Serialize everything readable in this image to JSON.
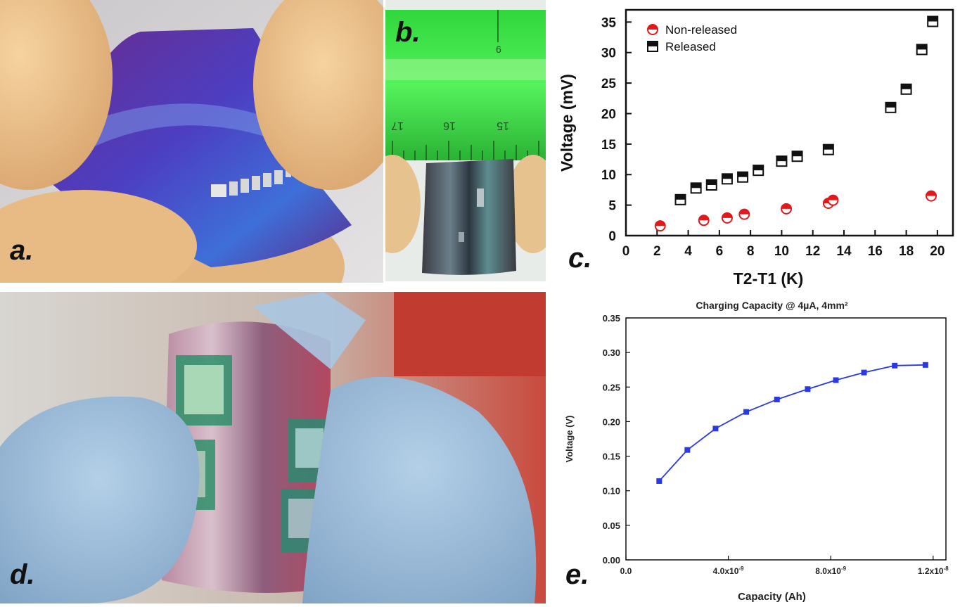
{
  "figure": {
    "labels": {
      "a": "a.",
      "b": "b.",
      "c": "c.",
      "d": "d.",
      "e": "e."
    },
    "ruler": {
      "numbers": [
        "6",
        "17",
        "16",
        "15"
      ]
    }
  },
  "chart_data": [
    {
      "id": "c",
      "type": "scatter",
      "title": "",
      "xlabel": "T2-T1 (K)",
      "ylabel": "Voltage (mV)",
      "xlim": [
        0,
        21
      ],
      "ylim": [
        0,
        37
      ],
      "xticks": [
        "0",
        "2",
        "4",
        "6",
        "8",
        "10",
        "12",
        "14",
        "16",
        "18",
        "20"
      ],
      "yticks": [
        "0",
        "5",
        "10",
        "15",
        "20",
        "25",
        "30",
        "35"
      ],
      "legend_position": "top-left",
      "series": [
        {
          "name": "Non-released",
          "marker": "half-filled circle",
          "color": "#e0191b",
          "points": [
            [
              2.2,
              1.6
            ],
            [
              5.0,
              2.5
            ],
            [
              6.5,
              2.9
            ],
            [
              7.6,
              3.5
            ],
            [
              10.3,
              4.4
            ],
            [
              13.0,
              5.3
            ],
            [
              13.3,
              5.8
            ],
            [
              19.6,
              6.5
            ]
          ]
        },
        {
          "name": "Released",
          "marker": "half-filled square",
          "color": "#111111",
          "points": [
            [
              3.5,
              5.9
            ],
            [
              4.5,
              7.8
            ],
            [
              5.5,
              8.3
            ],
            [
              6.5,
              9.3
            ],
            [
              7.5,
              9.6
            ],
            [
              8.5,
              10.7
            ],
            [
              10.0,
              12.2
            ],
            [
              11.0,
              13.0
            ],
            [
              13.0,
              14.1
            ],
            [
              17.0,
              21.0
            ],
            [
              18.0,
              24.0
            ],
            [
              19.0,
              30.5
            ],
            [
              19.7,
              35.1
            ]
          ]
        }
      ]
    },
    {
      "id": "e",
      "type": "line",
      "title": "Charging Capacity @ 4µA, 4mm²",
      "xlabel": "Capacity (Ah)",
      "ylabel": "Voltage (V)",
      "xlim": [
        0,
        1.25e-08
      ],
      "ylim": [
        0,
        0.35
      ],
      "xticks": [
        {
          "main": "0.0"
        },
        {
          "main": "4.0x10",
          "sup": "-9"
        },
        {
          "main": "8.0x10",
          "sup": "-9"
        },
        {
          "main": "1.2x10",
          "sup": "-8"
        }
      ],
      "yticks": [
        "0.00",
        "0.05",
        "0.10",
        "0.15",
        "0.20",
        "0.25",
        "0.30",
        "0.35"
      ],
      "color": "#2a3ae0",
      "series": [
        {
          "name": "",
          "x": [
            1.3e-09,
            2.4e-09,
            3.5e-09,
            4.7e-09,
            5.9e-09,
            7.1e-09,
            8.2e-09,
            9.3e-09,
            1.05e-08,
            1.17e-08
          ],
          "y": [
            0.114,
            0.159,
            0.19,
            0.214,
            0.232,
            0.247,
            0.26,
            0.271,
            0.281,
            0.282
          ]
        }
      ]
    }
  ]
}
